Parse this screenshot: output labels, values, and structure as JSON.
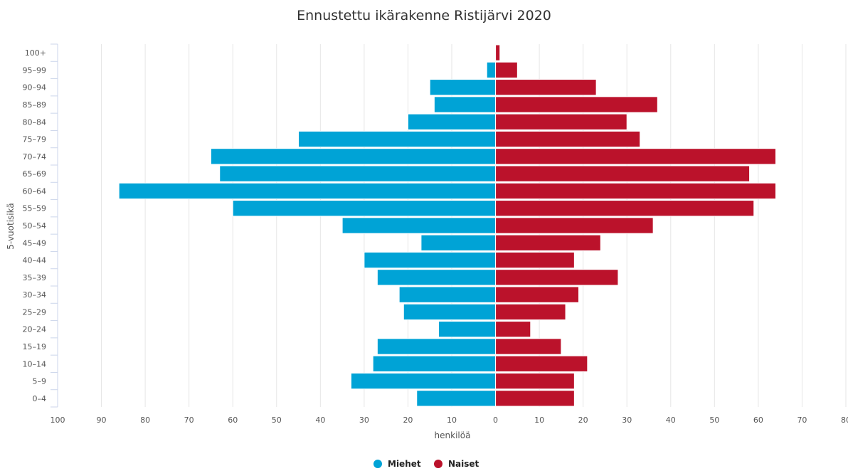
{
  "chart_data": {
    "type": "bar",
    "orientation": "horizontal-population-pyramid",
    "title": "Ennustettu ikärakenne Ristijärvi 2020",
    "xlabel": "henkilöä",
    "ylabel": "5-vuotisikä",
    "xlim": [
      -100,
      80
    ],
    "x_ticks": [
      -100,
      -90,
      -80,
      -70,
      -60,
      -50,
      -40,
      -30,
      -20,
      -10,
      0,
      10,
      20,
      30,
      40,
      50,
      60,
      70,
      80
    ],
    "x_tick_labels": [
      "100",
      "90",
      "80",
      "70",
      "60",
      "50",
      "40",
      "30",
      "20",
      "10",
      "0",
      "10",
      "20",
      "30",
      "40",
      "50",
      "60",
      "70",
      "80"
    ],
    "categories": [
      "0-4",
      "5-9",
      "10-14",
      "15-19",
      "20-24",
      "25-29",
      "30-34",
      "35-39",
      "40-44",
      "45-49",
      "50-54",
      "55-59",
      "60-64",
      "65-69",
      "70-74",
      "75-79",
      "80-84",
      "85-89",
      "90-94",
      "95-99",
      "100+"
    ],
    "series": [
      {
        "name": "Miehet",
        "color": "#00a3d6",
        "values": [
          18,
          33,
          28,
          27,
          13,
          21,
          22,
          27,
          30,
          17,
          35,
          60,
          86,
          63,
          65,
          45,
          20,
          14,
          15,
          2,
          0
        ]
      },
      {
        "name": "Naiset",
        "color": "#bb122b",
        "values": [
          18,
          18,
          21,
          15,
          8,
          16,
          19,
          28,
          18,
          24,
          36,
          59,
          64,
          58,
          64,
          33,
          30,
          37,
          23,
          5,
          1
        ]
      }
    ],
    "grid": true,
    "legend": "bottom-center"
  }
}
